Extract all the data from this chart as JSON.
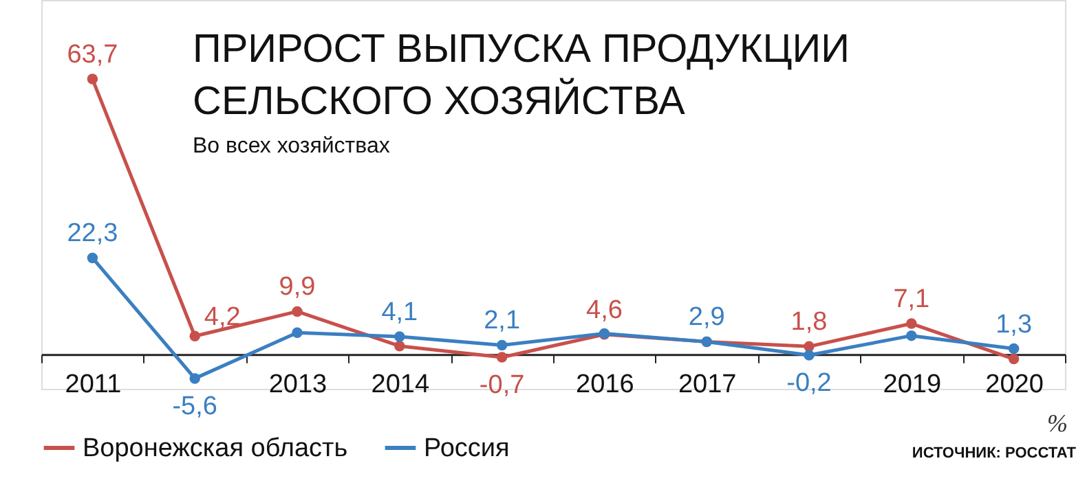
{
  "chart_data": {
    "type": "line",
    "title": "ПРИРОСТ ВЫПУСКА ПРОДУКЦИИ\nСЕЛЬСКОГО ХОЗЯЙСТВА",
    "subtitle": "Во всех хозяйствах",
    "categories": [
      "2011",
      null,
      "2013",
      "2014",
      null,
      "2016",
      "2017",
      null,
      "2019",
      "2020"
    ],
    "series": [
      {
        "name": "Воронежская область",
        "color": "#c8504b",
        "values": [
          63.7,
          4.2,
          9.9,
          1.9,
          -0.7,
          4.6,
          2.9,
          1.8,
          7.1,
          -1.1
        ],
        "value_labels": [
          "63,7",
          "4,2",
          "9,9",
          null,
          "-0,7",
          "4,6",
          null,
          "1,8",
          "7,1",
          null
        ]
      },
      {
        "name": "Россия",
        "color": "#3a7fc1",
        "values": [
          22.3,
          -5.6,
          5.0,
          4.1,
          2.1,
          4.8,
          2.9,
          -0.2,
          4.3,
          1.3
        ],
        "value_labels": [
          "22,3",
          "-5,6",
          null,
          "4,1",
          "2,1",
          null,
          "2,9",
          "-0,2",
          null,
          "1,3"
        ]
      }
    ],
    "ylim": [
      -8,
      82
    ],
    "marker": "circle",
    "line_style": "solid",
    "grid": false,
    "legend": "bottom left",
    "tick_labels": "x",
    "annotations": [
      "%",
      "ИСТОЧНИК: РОССТАТ"
    ]
  }
}
